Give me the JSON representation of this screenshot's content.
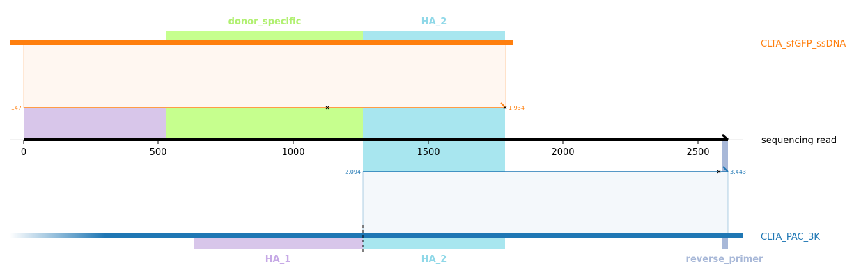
{
  "colors": {
    "orange": "#ff7f0e",
    "blue": "#1f77b4",
    "green_fill": "#c6ff8e",
    "green_text": "#b0f070",
    "cyan_fill": "#a8e6ef",
    "cyan_text": "#8fd8e8",
    "purple_fill": "#d8c6ea",
    "purple_text": "#c6a9e6",
    "grey_blue": "#a8b8d8"
  },
  "axis": {
    "ticks": [
      "0",
      "500",
      "1000",
      "1500",
      "2000",
      "2500"
    ],
    "label": "sequencing read"
  },
  "top": {
    "name": "CLTA_sfGFP_ssDNA",
    "features": {
      "donor_specific": "donor_specific",
      "ha2": "HA_2"
    },
    "start_label": "147",
    "end_label": "1,934"
  },
  "bottom": {
    "name": "CLTA_PAC_3K",
    "features": {
      "ha1": "HA_1",
      "ha2": "HA_2",
      "reverse_primer": "reverse_primer"
    },
    "start_label": "2,094",
    "end_label": "3,443"
  }
}
